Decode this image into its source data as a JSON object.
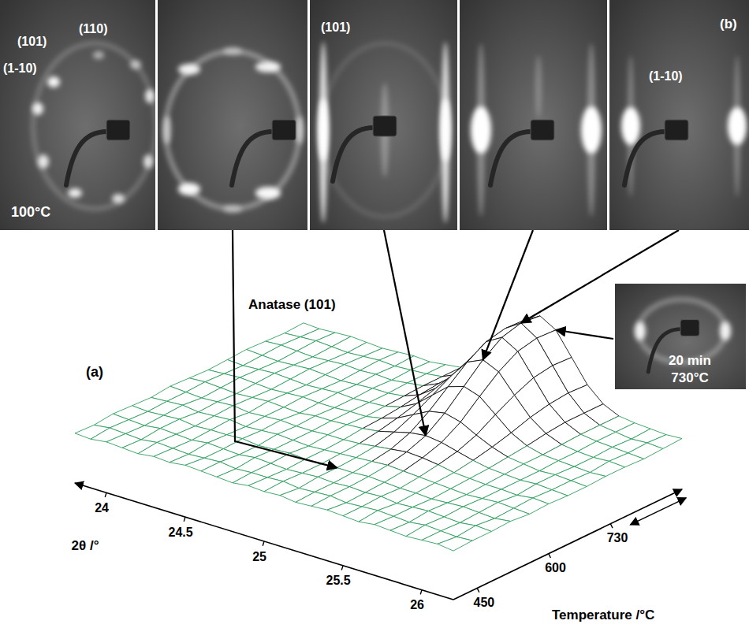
{
  "chart_data": {
    "type": "wireframe",
    "label": "(a)",
    "annotation": "Anatase (101)",
    "x_label": "2θ /°",
    "y_label": "Temperature /°C",
    "x": [
      23.8,
      23.9,
      24,
      24.1,
      24.2,
      24.3,
      24.4,
      24.5,
      24.6,
      24.7,
      24.8,
      24.9,
      25,
      25.1,
      25.2,
      25.3,
      25.4,
      25.5,
      25.6,
      25.7,
      25.8,
      25.9,
      26,
      26.1,
      26.2
    ],
    "y": [
      400,
      440,
      480,
      520,
      560,
      600,
      640,
      680,
      720,
      760,
      800,
      840,
      880
    ],
    "z": [
      [
        4,
        3,
        5,
        4,
        3,
        5,
        4,
        6,
        5,
        4,
        3,
        5,
        4,
        5,
        3,
        4,
        5,
        4,
        3,
        5,
        4,
        3,
        4,
        5,
        3
      ],
      [
        3,
        5,
        4,
        3,
        5,
        4,
        3,
        4,
        5,
        3,
        4,
        4,
        5,
        3,
        4,
        5,
        3,
        4,
        5,
        4,
        3,
        5,
        4,
        3,
        4
      ],
      [
        5,
        4,
        3,
        5,
        4,
        3,
        5,
        4,
        3,
        5,
        4,
        3,
        4,
        5,
        4,
        5,
        4,
        5,
        3,
        4,
        5,
        4,
        3,
        5,
        4
      ],
      [
        4,
        3,
        4,
        5,
        3,
        4,
        4,
        5,
        3,
        4,
        5,
        4,
        4,
        5,
        5,
        6,
        5,
        4,
        4,
        3,
        4,
        5,
        4,
        3,
        5
      ],
      [
        3,
        4,
        5,
        3,
        4,
        5,
        3,
        4,
        5,
        4,
        3,
        4,
        5,
        6,
        7,
        8,
        7,
        6,
        5,
        4,
        3,
        4,
        5,
        4,
        3
      ],
      [
        5,
        4,
        3,
        4,
        5,
        3,
        4,
        5,
        4,
        4,
        5,
        5,
        6,
        8,
        10,
        12,
        11,
        9,
        6,
        5,
        4,
        4,
        3,
        5,
        4
      ],
      [
        4,
        5,
        4,
        3,
        4,
        5,
        4,
        3,
        5,
        5,
        6,
        7,
        9,
        13,
        17,
        19,
        17,
        13,
        9,
        6,
        5,
        4,
        5,
        4,
        3
      ],
      [
        3,
        4,
        5,
        4,
        3,
        4,
        5,
        4,
        4,
        5,
        5,
        8,
        13,
        21,
        29,
        32,
        28,
        20,
        13,
        8,
        6,
        4,
        5,
        4,
        3
      ],
      [
        4,
        3,
        4,
        5,
        4,
        3,
        4,
        5,
        4,
        5,
        6,
        10,
        18,
        31,
        44,
        49,
        44,
        31,
        18,
        10,
        6,
        5,
        4,
        3,
        4
      ],
      [
        5,
        4,
        3,
        4,
        5,
        4,
        3,
        4,
        5,
        5,
        7,
        13,
        24,
        41,
        59,
        66,
        59,
        41,
        24,
        13,
        7,
        5,
        4,
        5,
        4
      ],
      [
        4,
        5,
        4,
        3,
        4,
        5,
        4,
        5,
        4,
        6,
        8,
        15,
        28,
        49,
        70,
        79,
        70,
        49,
        28,
        15,
        8,
        6,
        5,
        4,
        3
      ],
      [
        3,
        4,
        5,
        4,
        3,
        4,
        5,
        4,
        5,
        6,
        8,
        15,
        30,
        52,
        74,
        84,
        74,
        52,
        30,
        15,
        8,
        6,
        4,
        5,
        4
      ],
      [
        4,
        3,
        4,
        5,
        4,
        3,
        4,
        5,
        4,
        6,
        8,
        15,
        29,
        51,
        73,
        82,
        73,
        51,
        29,
        15,
        8,
        6,
        5,
        4,
        5
      ]
    ],
    "xlim": [
      23.8,
      26.2
    ],
    "ylim": [
      400,
      880
    ],
    "zlim": [
      0,
      100
    ],
    "xticks": [
      24,
      24.5,
      25,
      25.5,
      26
    ],
    "yticks": [
      450,
      600,
      730
    ],
    "color": "#2e9e5e"
  },
  "patterns": {
    "label": "(b)",
    "panels": [
      {
        "texts": [
          "(110)",
          "(101)",
          "(1-10)",
          "100°C"
        ]
      },
      {
        "texts": []
      },
      {
        "texts": [
          "(101)"
        ]
      },
      {
        "texts": []
      },
      {
        "texts": [
          "(1-10)"
        ]
      }
    ],
    "inset": {
      "texts": [
        "20 min",
        "730°C"
      ]
    }
  }
}
